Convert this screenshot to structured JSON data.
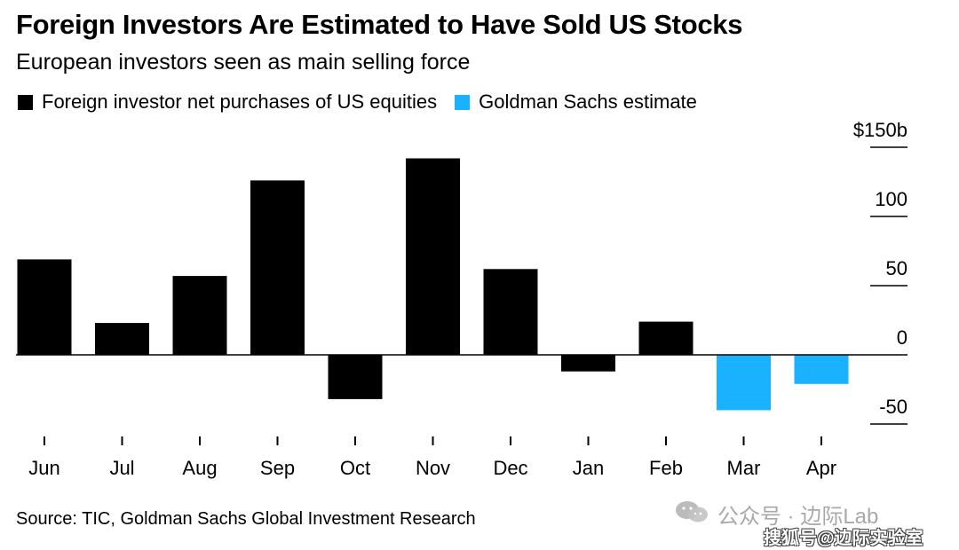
{
  "chart_data": {
    "type": "bar",
    "title": "Foreign Investors Are Estimated to Have Sold US Stocks",
    "subtitle": "European investors seen as main selling force",
    "categories": [
      "Jun",
      "Jul",
      "Aug",
      "Sep",
      "Oct",
      "Nov",
      "Dec",
      "Jan",
      "Feb",
      "Mar",
      "Apr"
    ],
    "series": [
      {
        "name": "Foreign investor net purchases of US equities",
        "color": "#000000",
        "values": [
          69,
          23,
          57,
          126,
          -32,
          142,
          62,
          -12,
          24,
          null,
          null
        ]
      },
      {
        "name": "Goldman Sachs estimate",
        "color": "#1ab2ff",
        "values": [
          null,
          null,
          null,
          null,
          null,
          null,
          null,
          null,
          null,
          -40,
          -21
        ]
      }
    ],
    "yticks": [
      {
        "value": 150,
        "label": "$150b"
      },
      {
        "value": 100,
        "label": "100"
      },
      {
        "value": 50,
        "label": "50"
      },
      {
        "value": 0,
        "label": "0"
      },
      {
        "value": -50,
        "label": "-50"
      }
    ],
    "ylim": [
      -50,
      150
    ],
    "xlabel": "",
    "ylabel": "",
    "grid": false,
    "legend_position": "top-left",
    "axis_position": "right"
  },
  "source": "Source: TIC, Goldman Sachs Global Investment Research",
  "watermark": {
    "line1": "公众号 · 边际Lab",
    "line2": "搜狐号@边际实验室"
  }
}
